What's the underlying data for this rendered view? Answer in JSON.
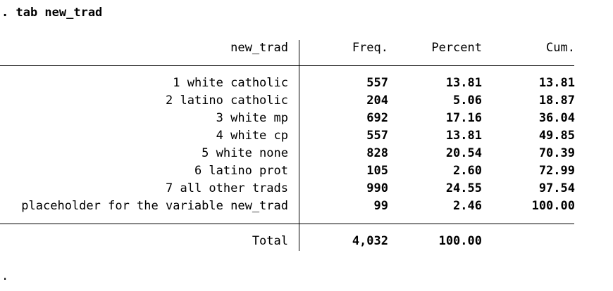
{
  "console": {
    "command": ". tab new_trad",
    "end_prompt": "."
  },
  "table": {
    "headers": {
      "label": "new_trad",
      "freq": "Freq.",
      "percent": "Percent",
      "cum": "Cum."
    },
    "rows": [
      {
        "label": "1 white catholic",
        "freq": "557",
        "percent": "13.81",
        "cum": "13.81"
      },
      {
        "label": "2 latino catholic",
        "freq": "204",
        "percent": "5.06",
        "cum": "18.87"
      },
      {
        "label": "3 white mp",
        "freq": "692",
        "percent": "17.16",
        "cum": "36.04"
      },
      {
        "label": "4 white cp",
        "freq": "557",
        "percent": "13.81",
        "cum": "49.85"
      },
      {
        "label": "5 white none",
        "freq": "828",
        "percent": "20.54",
        "cum": "70.39"
      },
      {
        "label": "6 latino prot",
        "freq": "105",
        "percent": "2.60",
        "cum": "72.99"
      },
      {
        "label": "7 all other trads",
        "freq": "990",
        "percent": "24.55",
        "cum": "97.54"
      },
      {
        "label": "placeholder for the variable new_trad",
        "freq": "99",
        "percent": "2.46",
        "cum": "100.00"
      }
    ],
    "total": {
      "label": "Total",
      "freq": "4,032",
      "percent": "100.00"
    }
  }
}
